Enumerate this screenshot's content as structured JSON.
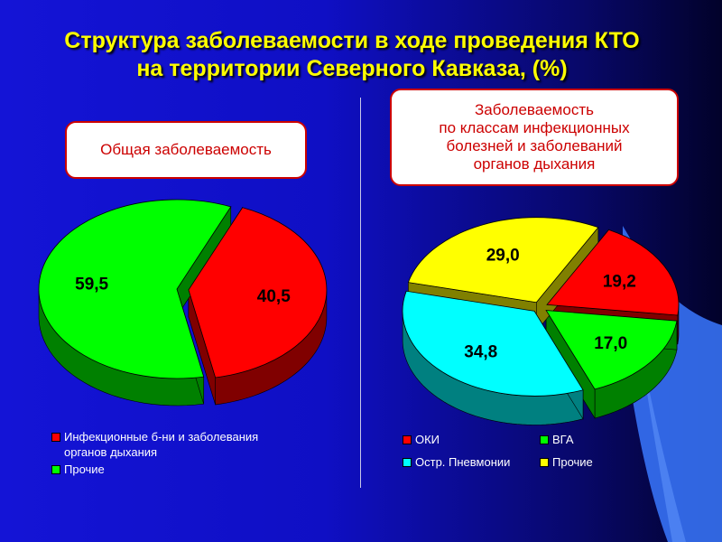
{
  "title": {
    "line1": "Структура заболеваемости в ходе проведения КТО",
    "line2": "на территории Северного Кавказа, (%)"
  },
  "left_box": {
    "label": "Общая заболеваемость"
  },
  "right_box": {
    "line1": "Заболеваемость",
    "line2": "по классам инфекционных",
    "line3": "болезней и заболеваний",
    "line4": "органов дыхания"
  },
  "chart_data": [
    {
      "type": "pie",
      "title": "Общая заболеваемость",
      "slices": [
        {
          "name": "Инфекционные б-ни и заболевания органов дыхания",
          "value": 40.5,
          "label": "40,5",
          "color": "#ff0000",
          "side": "#800000",
          "exploded": true
        },
        {
          "name": "Прочие",
          "value": 59.5,
          "label": "59,5",
          "color": "#00ff00",
          "side": "#008000",
          "exploded": false
        }
      ],
      "legend": {
        "placement": "bottom",
        "items": [
          {
            "line1": "Инфекционные б-ни и заболевания",
            "line2": "органов дыхания",
            "color": "#ff0000"
          },
          {
            "line1": "Прочие",
            "line2": "",
            "color": "#00ff00"
          }
        ]
      }
    },
    {
      "type": "pie",
      "title": "Заболеваемость по классам инфекционных болезней и заболеваний органов дыхания",
      "slices": [
        {
          "name": "ОКИ",
          "value": 19.2,
          "label": "19,2",
          "color": "#ff0000",
          "side": "#800000",
          "exploded": true
        },
        {
          "name": "ВГА",
          "value": 17.0,
          "label": "17,0",
          "color": "#00ff00",
          "side": "#008000",
          "exploded": true
        },
        {
          "name": "Остр. Пневмонии",
          "value": 34.8,
          "label": "34,8",
          "color": "#00ffff",
          "side": "#008080",
          "exploded": true
        },
        {
          "name": "Прочие",
          "value": 29.0,
          "label": "29,0",
          "color": "#ffff00",
          "side": "#808000",
          "exploded": true
        }
      ],
      "legend": {
        "placement": "bottom",
        "items": [
          {
            "label": "ОКИ",
            "color": "#ff0000"
          },
          {
            "label": "ВГА",
            "color": "#00ff00"
          },
          {
            "label": "Остр. Пневмонии",
            "color": "#00ffff"
          },
          {
            "label": "Прочие",
            "color": "#ffff00"
          }
        ]
      }
    }
  ]
}
